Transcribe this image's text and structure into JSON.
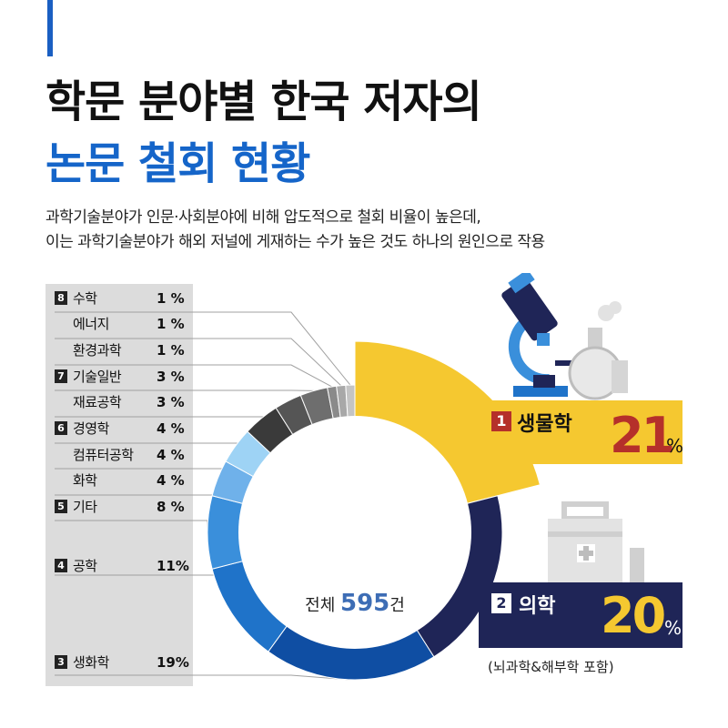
{
  "header": {
    "title_line1": "학문 분야별 한국 저자의",
    "title_line2": "논문 철회 현황",
    "subtitle_line1": "과학기술분야가 인문·사회분야에 비해 압도적으로 철회 비율이 높은데,",
    "subtitle_line2": "이는 과학기술분야가 해외 저널에 게재하는 수가 높은 것도 하나의 원인으로 작용"
  },
  "total": {
    "prefix": "전체 ",
    "value": "595",
    "suffix": "건"
  },
  "callouts": [
    {
      "rank": "1",
      "label": "생물학",
      "percent": "21",
      "unit": "%"
    },
    {
      "rank": "2",
      "label": "의학",
      "percent": "20",
      "unit": "%",
      "note": "(뇌과학&해부학 포함)"
    }
  ],
  "legend": [
    {
      "rank": "8",
      "label": "수학",
      "percent": "1 %"
    },
    {
      "rank": "",
      "label": "에너지",
      "percent": "1 %"
    },
    {
      "rank": "",
      "label": "환경과학",
      "percent": "1 %"
    },
    {
      "rank": "7",
      "label": "기술일반",
      "percent": "3 %"
    },
    {
      "rank": "",
      "label": "재료공학",
      "percent": "3 %"
    },
    {
      "rank": "6",
      "label": "경영학",
      "percent": "4 %"
    },
    {
      "rank": "",
      "label": "컴퓨터공학",
      "percent": "4 %"
    },
    {
      "rank": "",
      "label": "화학",
      "percent": "4 %"
    },
    {
      "rank": "5",
      "label": "기타",
      "percent": "8 %"
    },
    {
      "rank": "4",
      "label": "공학",
      "percent": "11%"
    },
    {
      "rank": "3",
      "label": "생화학",
      "percent": "19%"
    }
  ],
  "chart_data": {
    "type": "pie",
    "donut": true,
    "total": 595,
    "slices": [
      {
        "label": "생물학",
        "value": 21,
        "color": "#f5c830"
      },
      {
        "label": "의학",
        "value": 20,
        "color": "#1f2557"
      },
      {
        "label": "생화학",
        "value": 19,
        "color": "#0f4ea3"
      },
      {
        "label": "공학",
        "value": 11,
        "color": "#1f73c9"
      },
      {
        "label": "기타",
        "value": 8,
        "color": "#3a8fdb"
      },
      {
        "label": "화학",
        "value": 4,
        "color": "#6fb1ea"
      },
      {
        "label": "컴퓨터공학",
        "value": 4,
        "color": "#9ed3f5"
      },
      {
        "label": "경영학",
        "value": 4,
        "color": "#3a3a3a"
      },
      {
        "label": "재료공학",
        "value": 3,
        "color": "#555555"
      },
      {
        "label": "기술일반",
        "value": 3,
        "color": "#6e6e6e"
      },
      {
        "label": "환경과학",
        "value": 1,
        "color": "#8a8a8a"
      },
      {
        "label": "에너지",
        "value": 1,
        "color": "#a8a8a8"
      },
      {
        "label": "수학",
        "value": 1,
        "color": "#c4c4c4"
      }
    ]
  }
}
